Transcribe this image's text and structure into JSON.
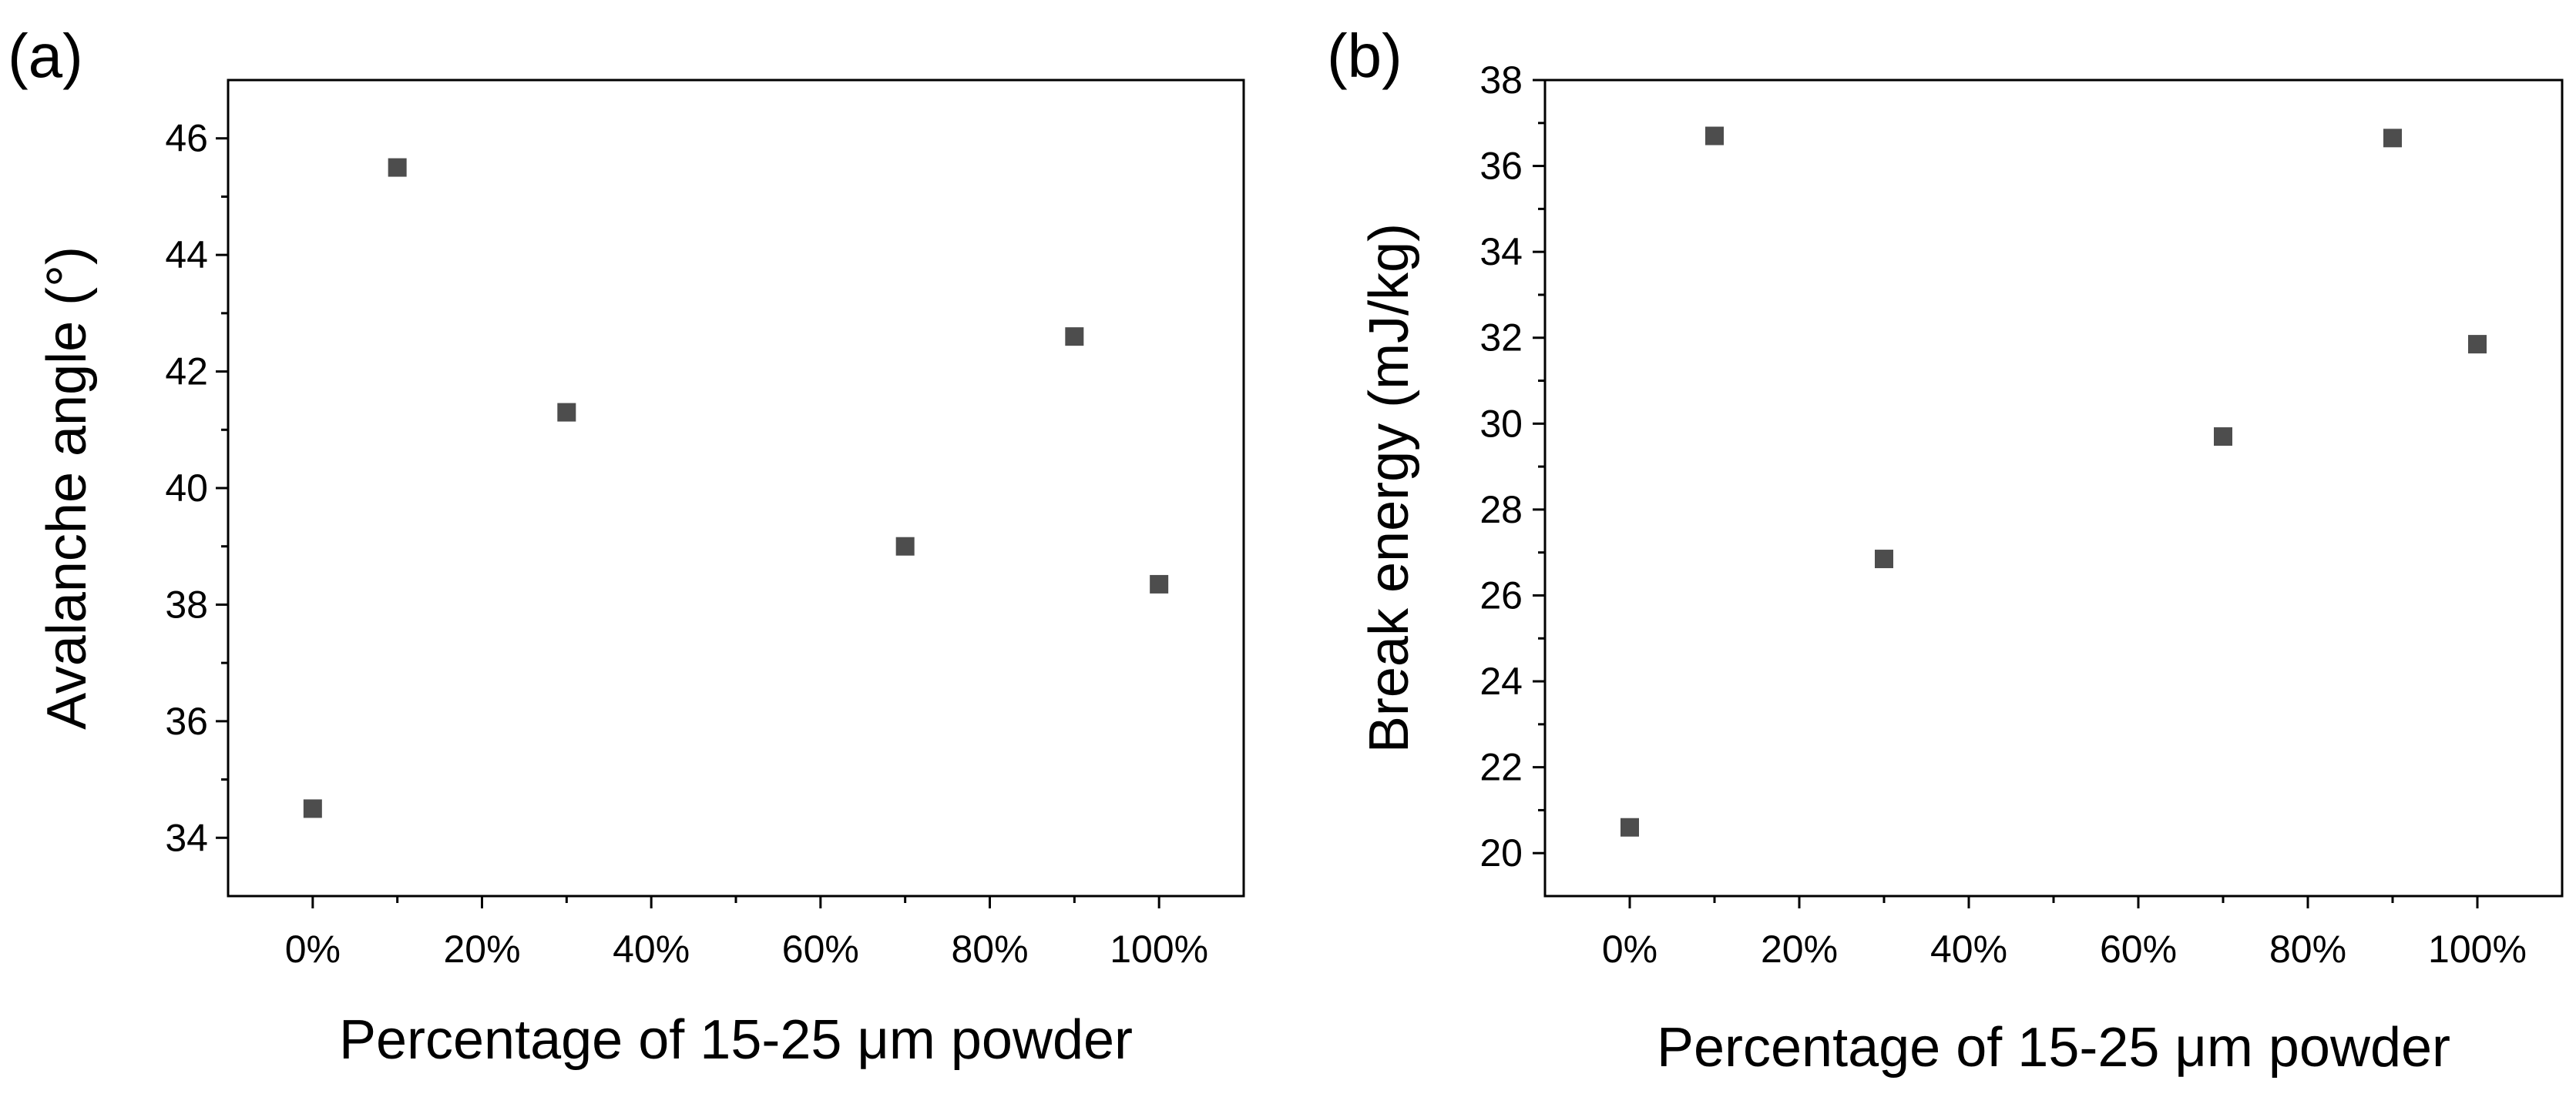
{
  "chart_data": [
    {
      "type": "scatter",
      "panel_label": "(a)",
      "title": "",
      "xlabel": "Percentage of 15-25 μm powder",
      "ylabel": "Avalanche angle (°)",
      "x": [
        0,
        10,
        30,
        70,
        90,
        100
      ],
      "y": [
        34.5,
        45.5,
        41.3,
        39.0,
        42.6,
        38.35
      ],
      "xlim": [
        -10,
        110
      ],
      "ylim": [
        33,
        47
      ],
      "xticks": [
        0,
        20,
        40,
        60,
        80,
        100
      ],
      "xtick_labels": [
        "0%",
        "20%",
        "40%",
        "60%",
        "80%",
        "100%"
      ],
      "yticks": [
        34,
        36,
        38,
        40,
        42,
        44,
        46
      ],
      "ytick_labels": [
        "34",
        "36",
        "38",
        "40",
        "42",
        "44",
        "46"
      ],
      "marker": "square",
      "marker_color": "#4d4d4d",
      "grid": false
    },
    {
      "type": "scatter",
      "panel_label": "(b)",
      "title": "",
      "xlabel": "Percentage of 15-25 μm powder",
      "ylabel": "Break energy (mJ/kg)",
      "x": [
        0,
        10,
        30,
        70,
        90,
        100
      ],
      "y": [
        20.6,
        36.7,
        26.85,
        29.7,
        36.65,
        31.85
      ],
      "xlim": [
        -10,
        110
      ],
      "ylim": [
        19,
        38
      ],
      "xticks": [
        0,
        20,
        40,
        60,
        80,
        100
      ],
      "xtick_labels": [
        "0%",
        "20%",
        "40%",
        "60%",
        "80%",
        "100%"
      ],
      "yticks": [
        20,
        22,
        24,
        26,
        28,
        30,
        32,
        34,
        36,
        38
      ],
      "ytick_labels": [
        "20",
        "22",
        "24",
        "26",
        "28",
        "30",
        "32",
        "34",
        "36",
        "38"
      ],
      "marker": "square",
      "marker_color": "#4d4d4d",
      "grid": false
    }
  ]
}
